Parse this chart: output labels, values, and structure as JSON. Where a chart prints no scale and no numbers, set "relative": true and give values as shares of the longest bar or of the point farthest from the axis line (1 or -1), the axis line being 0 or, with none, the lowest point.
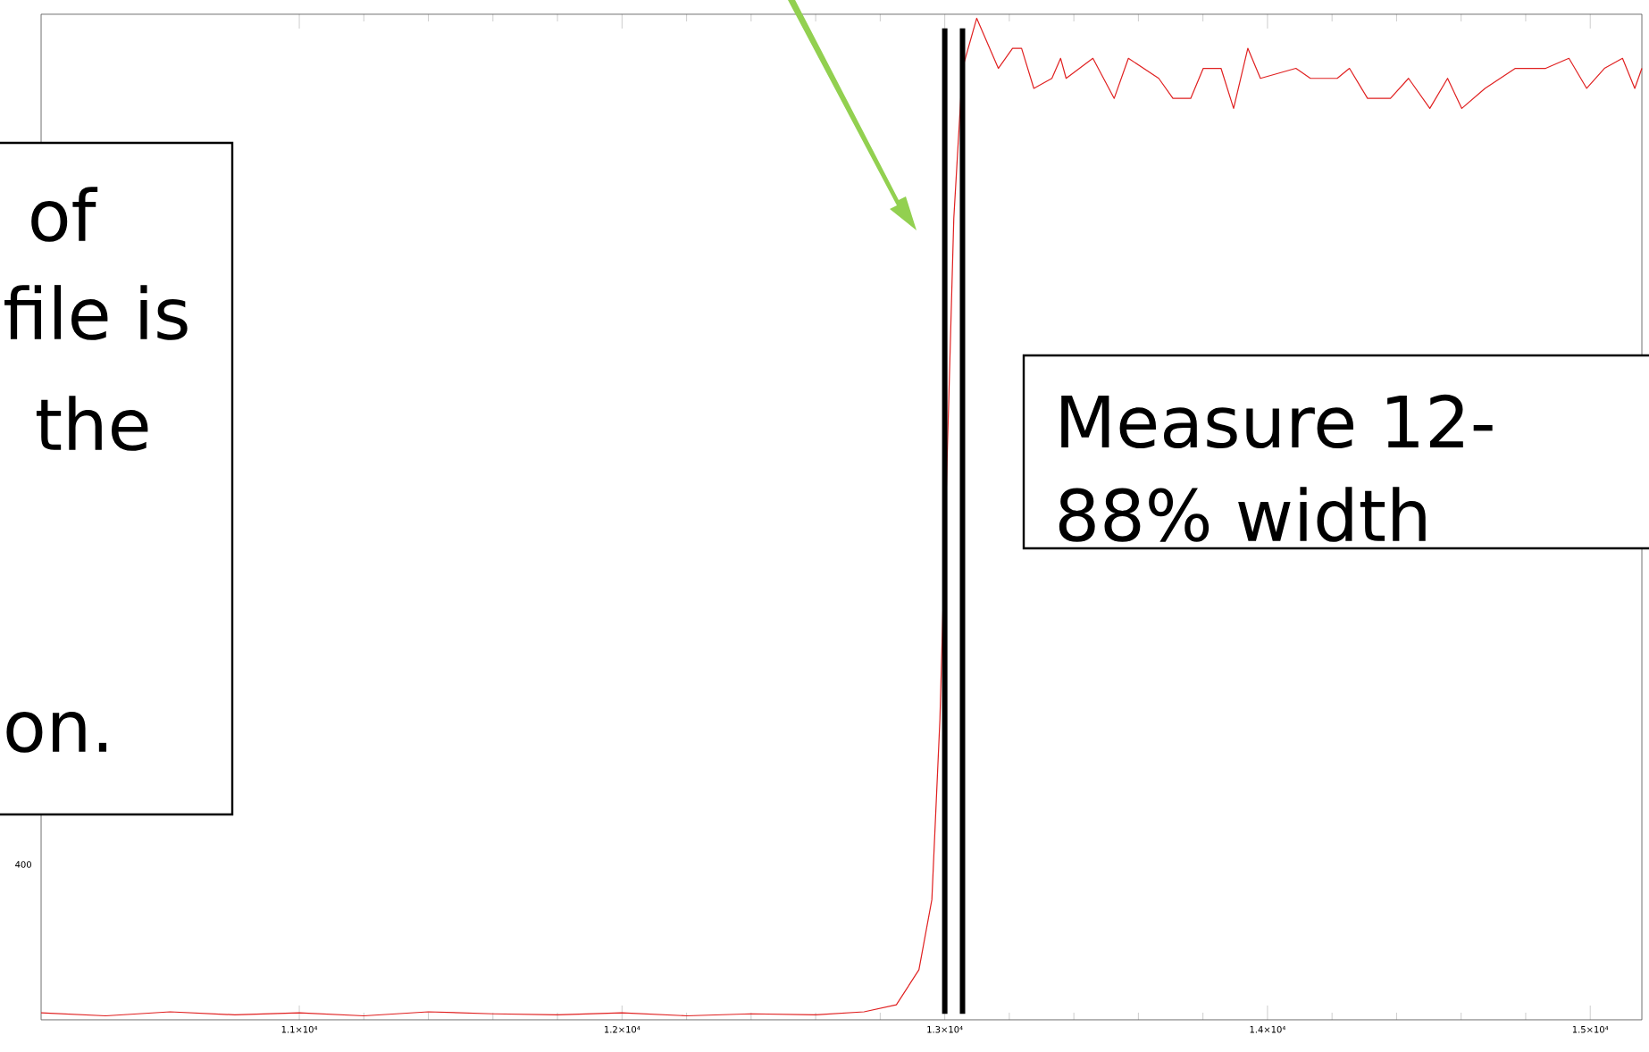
{
  "chart_data": {
    "type": "line",
    "relative": true,
    "xlim": [
      10200,
      15160
    ],
    "xticks": [
      {
        "value": 11000,
        "label": "1.1×10⁴"
      },
      {
        "value": 12000,
        "label": "1.2×10⁴"
      },
      {
        "value": 13000,
        "label": "1.3×10⁴"
      },
      {
        "value": 14000,
        "label": "1.4×10⁴"
      },
      {
        "value": 15000,
        "label": "1.5×10⁴"
      }
    ],
    "x": [
      10200,
      10400,
      10600,
      10800,
      11000,
      11200,
      11400,
      11600,
      11800,
      12000,
      12200,
      12400,
      12600,
      12750,
      12850,
      12920,
      12960,
      12985,
      13000,
      13028,
      13055,
      13099,
      13166,
      13210,
      13238,
      13276,
      13332,
      13359,
      13376,
      13459,
      13525,
      13569,
      13663,
      13707,
      13762,
      13801,
      13856,
      13895,
      13939,
      13978,
      14088,
      14133,
      14216,
      14254,
      14310,
      14381,
      14437,
      14503,
      14558,
      14602,
      14674,
      14768,
      14862,
      14934,
      14989,
      15044,
      15100,
      15138,
      15160
    ],
    "series": [
      {
        "color": "#e02020",
        "values": [
          0.007,
          0.004,
          0.008,
          0.005,
          0.007,
          0.004,
          0.008,
          0.006,
          0.005,
          0.007,
          0.004,
          0.006,
          0.005,
          0.008,
          0.015,
          0.05,
          0.12,
          0.3,
          null,
          0.8,
          0.95,
          1.0,
          0.95,
          0.97,
          0.97,
          0.93,
          0.94,
          0.96,
          0.94,
          0.96,
          0.92,
          0.96,
          0.94,
          0.92,
          0.92,
          0.95,
          0.95,
          0.91,
          0.97,
          0.94,
          0.95,
          0.94,
          0.94,
          0.95,
          0.92,
          0.92,
          0.94,
          0.91,
          0.94,
          0.91,
          0.93,
          0.95,
          0.95,
          0.96,
          0.93,
          0.95,
          0.96,
          0.93,
          0.95
        ]
      }
    ],
    "ref_lines": [
      {
        "axis": "x",
        "value": 13000,
        "color": "#000000"
      },
      {
        "axis": "x",
        "value": 13055,
        "color": "#000000"
      }
    ],
    "annotations": [
      "of",
      "file is",
      "the",
      "on.",
      "Measure 12-",
      "88% width",
      "400"
    ],
    "line_style": "solid",
    "grid": false
  }
}
